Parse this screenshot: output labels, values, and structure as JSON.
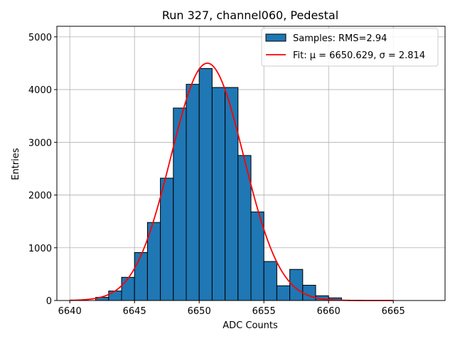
{
  "chart_data": {
    "type": "bar",
    "title": "Run 327, channel060, Pedestal",
    "xlabel": "ADC Counts",
    "ylabel": "Entries",
    "xlim": [
      6639,
      6669
    ],
    "ylim": [
      0,
      5200
    ],
    "xticks": [
      6640,
      6645,
      6650,
      6655,
      6660,
      6665
    ],
    "yticks": [
      0,
      1000,
      2000,
      3000,
      4000,
      5000
    ],
    "grid": true,
    "legend_position": "top-right",
    "bin_width": 1,
    "histogram": {
      "name": "Samples: RMS=2.94",
      "color": "#1f77b4",
      "bin_starts": [
        6642,
        6643,
        6644,
        6645,
        6646,
        6647,
        6648,
        6649,
        6650,
        6651,
        6652,
        6653,
        6654,
        6655,
        6656,
        6657,
        6658,
        6659,
        6660
      ],
      "values": [
        60,
        180,
        440,
        910,
        1480,
        2320,
        3650,
        4100,
        4400,
        4040,
        4040,
        2750,
        1680,
        740,
        280,
        590,
        290,
        90,
        50
      ]
    },
    "fit": {
      "name": "Fit: μ = 6650.629, σ = 2.814",
      "color": "#ff0000",
      "mu": 6650.629,
      "sigma": 2.814,
      "amplitude": 4500,
      "x_range": [
        6640,
        6665
      ]
    }
  }
}
